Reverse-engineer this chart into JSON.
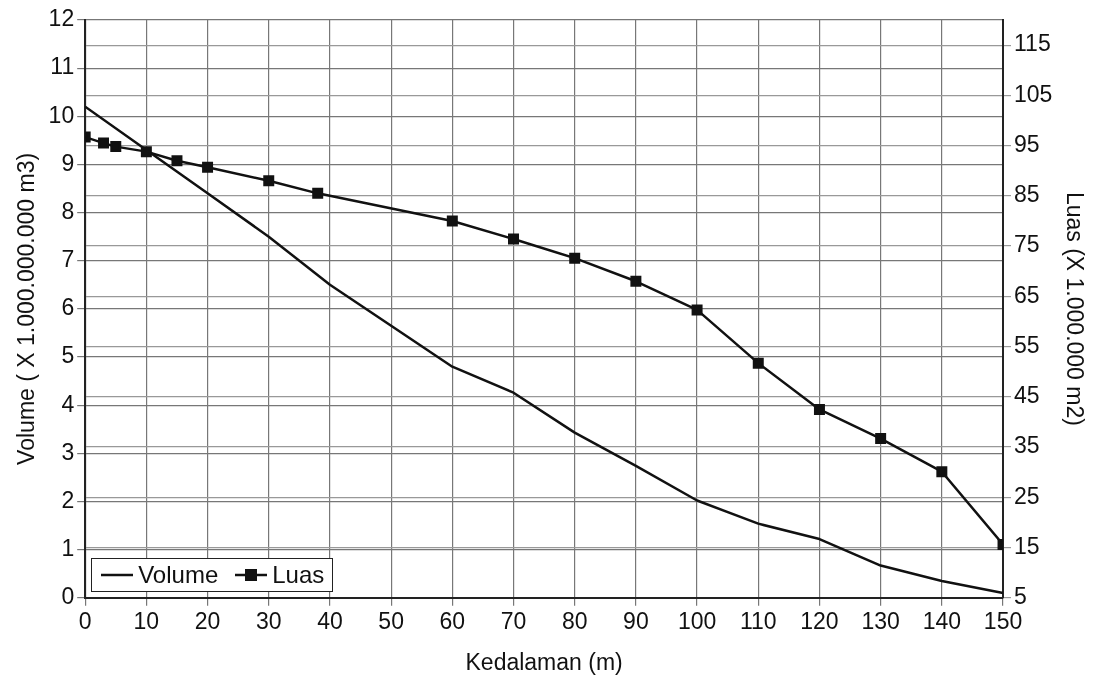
{
  "chart_data": {
    "type": "line",
    "xlabel": "Kedalaman (m)",
    "ylabel": "Volume ( X 1.000.000.000 m3)",
    "y2label": "Luas (X 1.000.000 m2)",
    "xlim": [
      0,
      150
    ],
    "xticks": [
      0,
      10,
      20,
      30,
      40,
      50,
      60,
      70,
      80,
      90,
      100,
      110,
      120,
      130,
      140,
      150
    ],
    "ylim": [
      0,
      12
    ],
    "yticks": [
      0,
      1,
      2,
      3,
      4,
      5,
      6,
      7,
      8,
      9,
      10,
      11,
      12
    ],
    "y2lim": [
      5,
      120
    ],
    "y2ticks": [
      5,
      15,
      25,
      35,
      45,
      55,
      65,
      75,
      85,
      95,
      105,
      115
    ],
    "grid": true,
    "legend": "bottom left",
    "line_style": "solid",
    "series": [
      {
        "name": "Volume",
        "color": "#111111",
        "marker": "none",
        "x": [
          0,
          10,
          20,
          30,
          40,
          50,
          60,
          70,
          80,
          90,
          100,
          110,
          120,
          130,
          140,
          150
        ],
        "values": [
          10.2,
          9.3,
          8.4,
          7.5,
          6.5,
          5.65,
          4.8,
          4.26,
          3.43,
          2.74,
          2.02,
          1.54,
          1.22,
          0.67,
          0.35,
          0.1
        ]
      },
      {
        "name": "Luas",
        "color": "#111111",
        "marker": "square",
        "axis": "y2",
        "x": [
          0,
          3,
          5,
          10,
          15,
          20,
          30,
          38,
          60,
          70,
          80,
          90,
          100,
          110,
          120,
          130,
          140,
          150
        ],
        "values": [
          96.7,
          95.5,
          94.8,
          93.8,
          92,
          90.7,
          88,
          85.5,
          80,
          76.4,
          72.6,
          68,
          62.3,
          51.7,
          42.5,
          36.7,
          30.1,
          15.6
        ]
      }
    ]
  }
}
